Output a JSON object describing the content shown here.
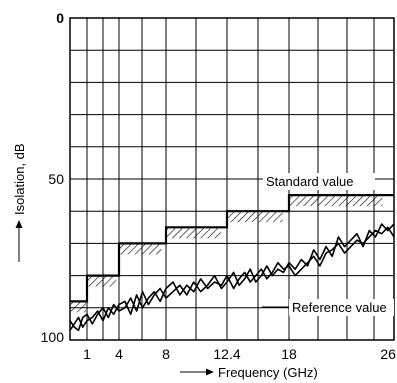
{
  "chart_data": {
    "type": "line",
    "title": "",
    "xlabel": "Frequency (GHz)",
    "ylabel": "Isolation, dB",
    "y_inverted": true,
    "ylim": [
      0,
      100
    ],
    "xlim": [
      0,
      26.5
    ],
    "x_scale": "segmented",
    "x_ticks": [
      1,
      4,
      8,
      12.4,
      18,
      26.5
    ],
    "x_tick_labels": [
      "1",
      "4",
      "8",
      "12.4",
      "18",
      "26.5"
    ],
    "y_ticks": [
      0,
      50,
      100
    ],
    "y_tick_labels": [
      "0",
      "50",
      "100"
    ],
    "grid": true,
    "annotations": {
      "standard": "Standard value",
      "reference": "Reference value"
    },
    "standard_value": [
      {
        "x0": 0,
        "x1": 1,
        "y": 88
      },
      {
        "x0": 1,
        "x1": 4,
        "y": 80
      },
      {
        "x0": 4,
        "x1": 8,
        "y": 70
      },
      {
        "x0": 8,
        "x1": 12.4,
        "y": 65
      },
      {
        "x0": 12.4,
        "x1": 18,
        "y": 60
      },
      {
        "x0": 18,
        "x1": 26.5,
        "y": 55
      }
    ],
    "series": [
      {
        "x": [
          0,
          0.25,
          0.5,
          0.75,
          1,
          1.5,
          2,
          2.5,
          3,
          3.5,
          4,
          4.5,
          5,
          5.5,
          6,
          6.5,
          7,
          7.5,
          8,
          8.5,
          9,
          9.5,
          10,
          10.5,
          11,
          11.5,
          12,
          12.4,
          13,
          13.5,
          14,
          14.5,
          15,
          15.5,
          16,
          16.5,
          17,
          17.5,
          18,
          18.5,
          19,
          19.5,
          20,
          20.5,
          21,
          21.5,
          22,
          22.5,
          23,
          23.5,
          24,
          24.5,
          25,
          25.5,
          26,
          26.5
        ],
        "y": [
          97,
          95,
          93,
          96,
          94,
          93,
          91,
          94,
          90,
          92,
          89,
          88,
          92,
          86,
          90,
          87,
          85,
          88,
          84,
          82,
          86,
          83,
          85,
          81,
          84,
          82,
          83,
          80,
          84,
          81,
          79,
          82,
          80,
          78,
          81,
          79,
          76,
          78,
          77,
          80,
          78,
          76,
          74,
          77,
          73,
          72,
          70,
          73,
          71,
          69,
          70,
          68,
          66,
          67,
          65,
          68
        ]
      },
      {
        "x": [
          0,
          0.25,
          0.5,
          0.75,
          1,
          1.5,
          2,
          2.5,
          3,
          3.5,
          4,
          4.5,
          5,
          5.5,
          6,
          6.5,
          7,
          7.5,
          8,
          8.5,
          9,
          9.5,
          10,
          10.5,
          11,
          11.5,
          12,
          12.4,
          13,
          13.5,
          14,
          14.5,
          15,
          15.5,
          16,
          16.5,
          17,
          17.5,
          18,
          18.5,
          19,
          19.5,
          20,
          20.5,
          21,
          21.5,
          22,
          22.5,
          23,
          23.5,
          24,
          24.5,
          25,
          25.5,
          26,
          26.5
        ],
        "y": [
          94,
          96,
          97,
          93,
          92,
          95,
          92,
          90,
          93,
          89,
          91,
          90,
          87,
          91,
          85,
          89,
          86,
          84,
          87,
          85,
          83,
          86,
          82,
          85,
          83,
          80,
          84,
          82,
          79,
          83,
          81,
          78,
          82,
          80,
          77,
          80,
          78,
          79,
          76,
          78,
          75,
          77,
          72,
          75,
          71,
          74,
          68,
          71,
          69,
          67,
          71,
          66,
          68,
          64,
          66,
          64
        ]
      }
    ]
  }
}
